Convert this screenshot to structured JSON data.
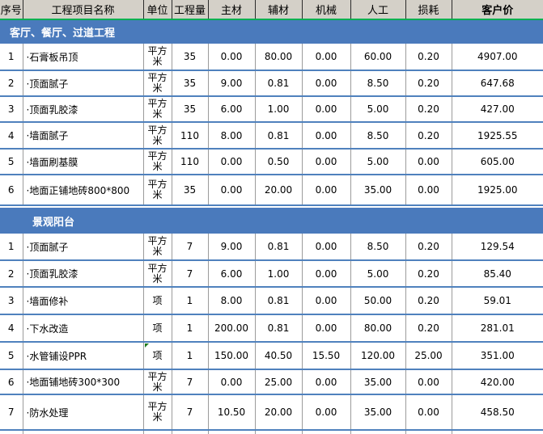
{
  "header": {
    "columns": [
      "序号",
      "工程项目名称",
      "单位",
      "工程量",
      "主材",
      "辅材",
      "机械",
      "人工",
      "损耗",
      "客户价"
    ]
  },
  "sections": [
    {
      "title": "客厅、餐厅、过道工程",
      "rows": [
        {
          "no": "1",
          "name": "·石膏板吊顶",
          "unit": "平方米",
          "qty": "35",
          "main": "0.00",
          "aux": "80.00",
          "mach": "0.00",
          "labor": "60.00",
          "loss": "0.20",
          "price": "4907.00"
        },
        {
          "no": "2",
          "name": "·顶面腻子",
          "unit": "平方米",
          "qty": "35",
          "main": "9.00",
          "aux": "0.81",
          "mach": "0.00",
          "labor": "8.50",
          "loss": "0.20",
          "price": "647.68"
        },
        {
          "no": "3",
          "name": "·顶面乳胶漆",
          "unit": "平方米",
          "qty": "35",
          "main": "6.00",
          "aux": "1.00",
          "mach": "0.00",
          "labor": "5.00",
          "loss": "0.20",
          "price": "427.00"
        },
        {
          "no": "4",
          "name": "·墙面腻子",
          "unit": "平方米",
          "qty": "110",
          "main": "8.00",
          "aux": "0.81",
          "mach": "0.00",
          "labor": "8.50",
          "loss": "0.20",
          "price": "1925.55"
        },
        {
          "no": "5",
          "name": "·墙面刷基膜",
          "unit": "平方米",
          "qty": "110",
          "main": "0.00",
          "aux": "0.50",
          "mach": "0.00",
          "labor": "5.00",
          "loss": "0.00",
          "price": "605.00"
        },
        {
          "no": "6",
          "name": "·地面正铺地砖800*800",
          "unit": "平方米",
          "qty": "35",
          "main": "0.00",
          "aux": "20.00",
          "mach": "0.00",
          "labor": "35.00",
          "loss": "0.00",
          "price": "1925.00"
        }
      ]
    },
    {
      "title": "景观阳台",
      "rows": [
        {
          "no": "1",
          "name": "·顶面腻子",
          "unit": "平方米",
          "qty": "7",
          "main": "9.00",
          "aux": "0.81",
          "mach": "0.00",
          "labor": "8.50",
          "loss": "0.20",
          "price": "129.54"
        },
        {
          "no": "2",
          "name": "·顶面乳胶漆",
          "unit": "平方米",
          "qty": "7",
          "main": "6.00",
          "aux": "1.00",
          "mach": "0.00",
          "labor": "5.00",
          "loss": "0.20",
          "price": "85.40"
        },
        {
          "no": "3",
          "name": "·墙面修补",
          "unit": "项",
          "qty": "1",
          "main": "8.00",
          "aux": "0.81",
          "mach": "0.00",
          "labor": "50.00",
          "loss": "0.20",
          "price": "59.01"
        },
        {
          "no": "4",
          "name": "·下水改造",
          "unit": "项",
          "qty": "1",
          "main": "200.00",
          "aux": "0.81",
          "mach": "0.00",
          "labor": "80.00",
          "loss": "0.20",
          "price": "281.01"
        },
        {
          "no": "5",
          "name": "·水管铺设PPR",
          "unit": "项",
          "qty": "1",
          "main": "150.00",
          "aux": "40.50",
          "mach": "15.50",
          "labor": "120.00",
          "loss": "25.00",
          "price": "351.00",
          "flag": true
        },
        {
          "no": "6",
          "name": "·地面铺地砖300*300",
          "unit": "平方米",
          "qty": "7",
          "main": "0.00",
          "aux": "25.00",
          "mach": "0.00",
          "labor": "35.00",
          "loss": "0.00",
          "price": "420.00"
        },
        {
          "no": "7",
          "name": "·防水处理",
          "unit": "平方米",
          "qty": "7",
          "main": "10.50",
          "aux": "20.00",
          "mach": "0.00",
          "labor": "35.00",
          "loss": "0.00",
          "price": "458.50"
        }
      ]
    }
  ],
  "icons": {
    "comment_flag": "comment-flag-icon"
  },
  "colors": {
    "header_bg": "#d4d0c8",
    "section_bar_blue": "#4a7abc",
    "row_border_blue": "#4f81bd",
    "grid_line_gray": "#9b9b9b",
    "header_green_rule": "#00b050",
    "comment_flag_green": "#1e7a1e",
    "text": "#000000",
    "section_title_text": "#ffffff"
  }
}
